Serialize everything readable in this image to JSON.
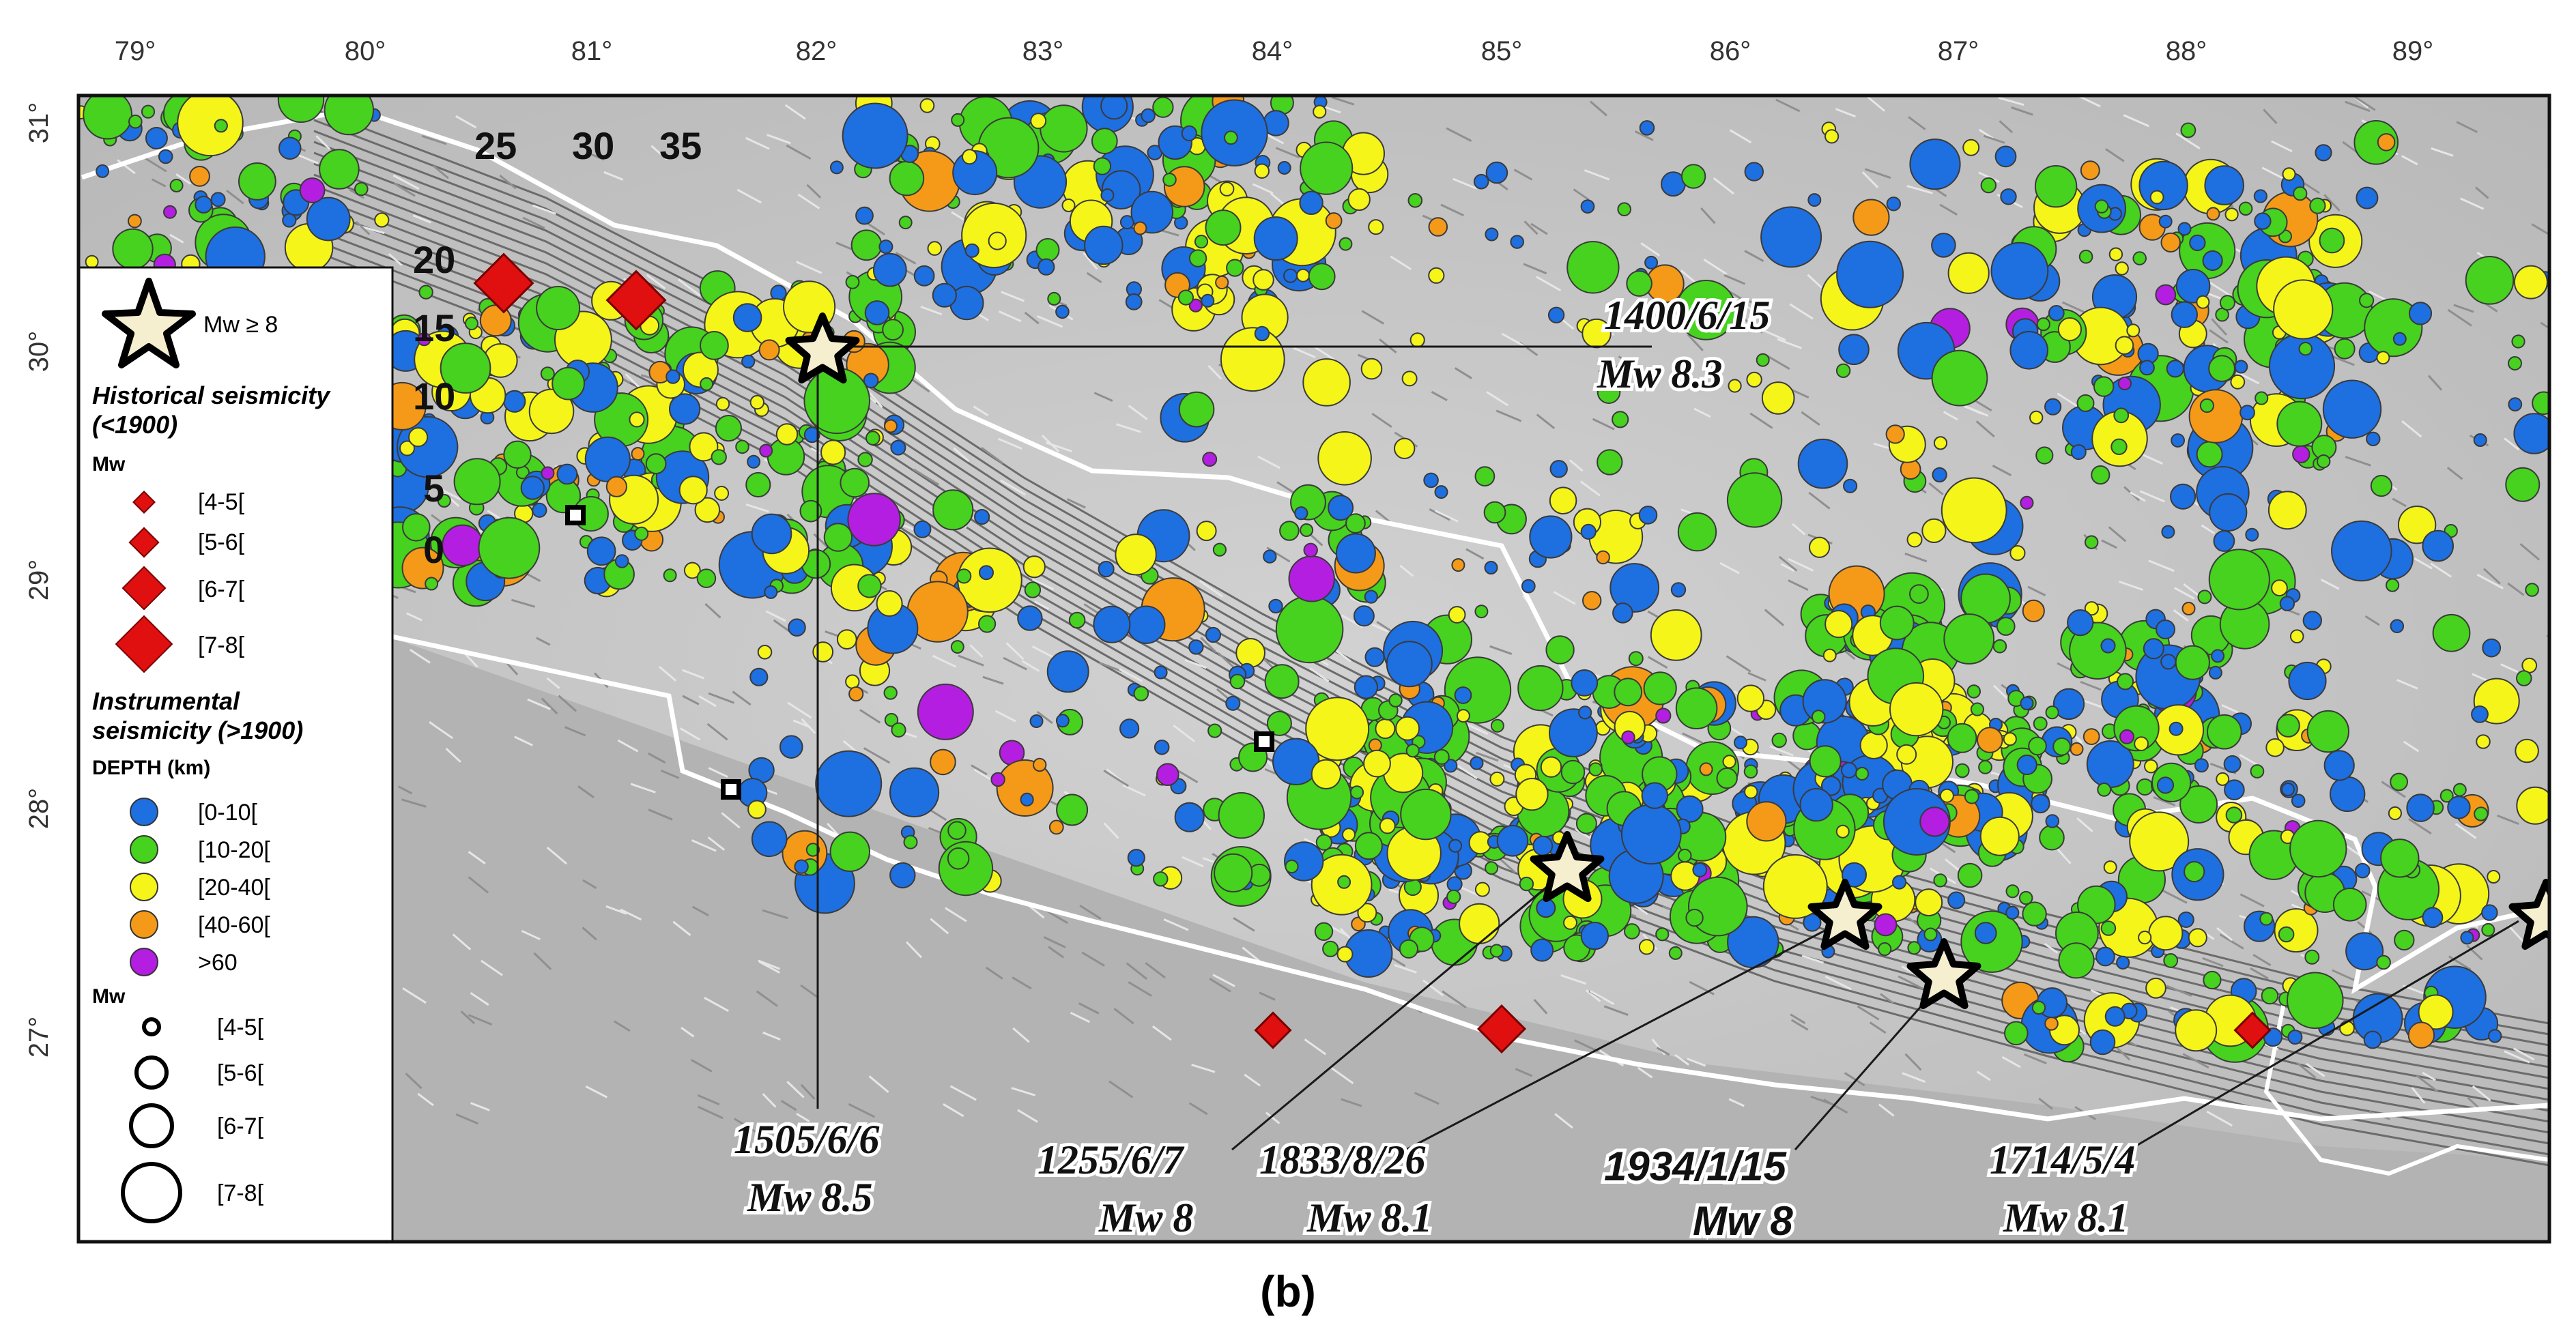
{
  "figure": {
    "panel_label": "(b)",
    "lon_labels": [
      "79°",
      "80°",
      "81°",
      "82°",
      "83°",
      "84°",
      "85°",
      "86°",
      "87°",
      "88°",
      "89°"
    ],
    "lat_labels": [
      "31°",
      "30°",
      "29°",
      "28°",
      "27°"
    ],
    "contour_labels": [
      "25",
      "30",
      "35",
      "20",
      "15",
      "10",
      "5",
      "0"
    ],
    "colors": {
      "depth_0_10": "#1e6fe0",
      "depth_10_20": "#46d21e",
      "depth_20_40": "#f5f51a",
      "depth_40_60": "#f59a18",
      "depth_60_plus": "#b41ee0",
      "historical": "#e01010",
      "land": "#bdbdbd",
      "border": "#ffffff"
    }
  },
  "legend": {
    "star_label": "Mw ≥ 8",
    "historical_title": "Historical seismicity",
    "historical_subtitle": "(<1900)",
    "historical_mw": "Mw",
    "historical_items": [
      "[4-5[",
      "[5-6[",
      "[6-7[",
      "[7-8["
    ],
    "instrumental_title": "Instrumental",
    "instrumental_title2": "seismicity (>1900)",
    "depth_label": "DEPTH (km)",
    "depth_items": [
      "[0-10[",
      "[10-20[",
      "[20-40[",
      "[40-60[",
      ">60"
    ],
    "size_mw": "Mw",
    "size_items": [
      "[4-5[",
      "[5-6[",
      "[6-7[",
      "[7-8["
    ]
  },
  "events": [
    {
      "date": "1400/6/15",
      "mw": "Mw 8.3",
      "lon": 82.0,
      "lat": 30.0
    },
    {
      "date": "1505/6/6",
      "mw": "Mw 8.5",
      "lon": 82.0,
      "lat": 30.0
    },
    {
      "date": "1255/6/7",
      "mw": "Mw 8",
      "lon": 85.3,
      "lat": 27.7
    },
    {
      "date": "1833/8/26",
      "mw": "Mw 8.1",
      "lon": 86.5,
      "lat": 27.5
    },
    {
      "date": "1934/1/15",
      "mw": "Mw 8",
      "lon": 86.9,
      "lat": 27.3
    },
    {
      "date": "1714/5/4",
      "mw": "Mw 8.1",
      "lon": 89.6,
      "lat": 27.5
    }
  ]
}
